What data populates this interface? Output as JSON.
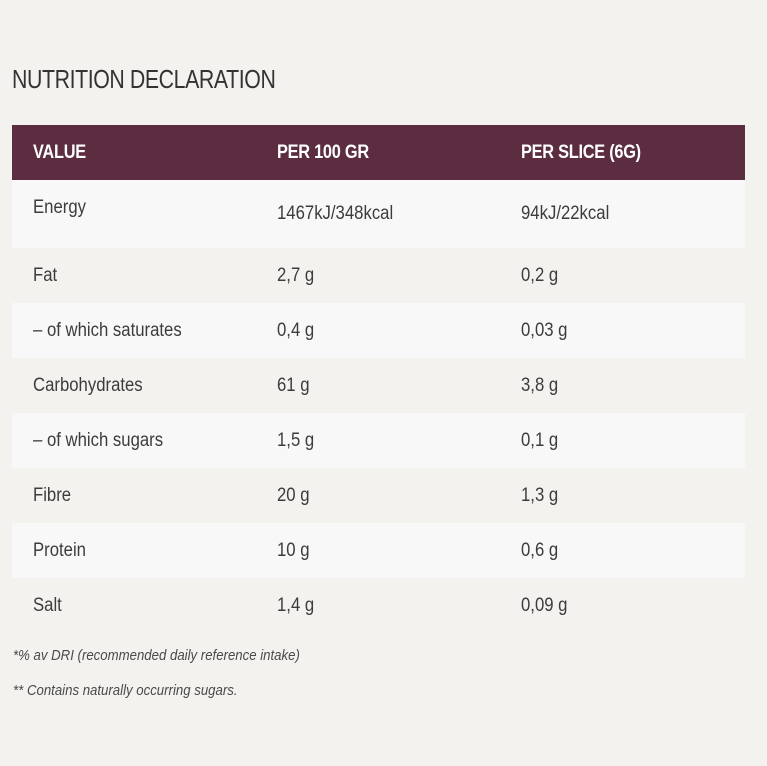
{
  "page_title": "NUTRITION DECLARATION",
  "table": {
    "headers": [
      "VALUE",
      "PER 100 GR",
      "PER SLICE (6G)"
    ],
    "rows": [
      {
        "label": "Energy",
        "per100": "1467kJ/348kcal",
        "perSlice": "94kJ/22kcal"
      },
      {
        "label": "Fat",
        "per100": "2,7 g",
        "perSlice": "0,2 g"
      },
      {
        "label": "– of which saturates",
        "per100": "0,4 g",
        "perSlice": "0,03 g"
      },
      {
        "label": "Carbohydrates",
        "per100": "61 g",
        "perSlice": "3,8 g"
      },
      {
        "label": "– of which sugars",
        "per100": "1,5 g",
        "perSlice": "0,1 g"
      },
      {
        "label": "Fibre",
        "per100": "20 g",
        "perSlice": "1,3 g"
      },
      {
        "label": "Protein",
        "per100": "10 g",
        "perSlice": "0,6 g"
      },
      {
        "label": "Salt",
        "per100": "1,4 g",
        "perSlice": "0,09 g"
      }
    ]
  },
  "footnotes": [
    "*% av DRI (recommended daily reference intake)",
    "**  Contains naturally occurring sugars."
  ],
  "colors": {
    "header_background": "#5c2d40",
    "page_background": "#f4f2ef",
    "shaded_row": "#f8f8f8"
  }
}
